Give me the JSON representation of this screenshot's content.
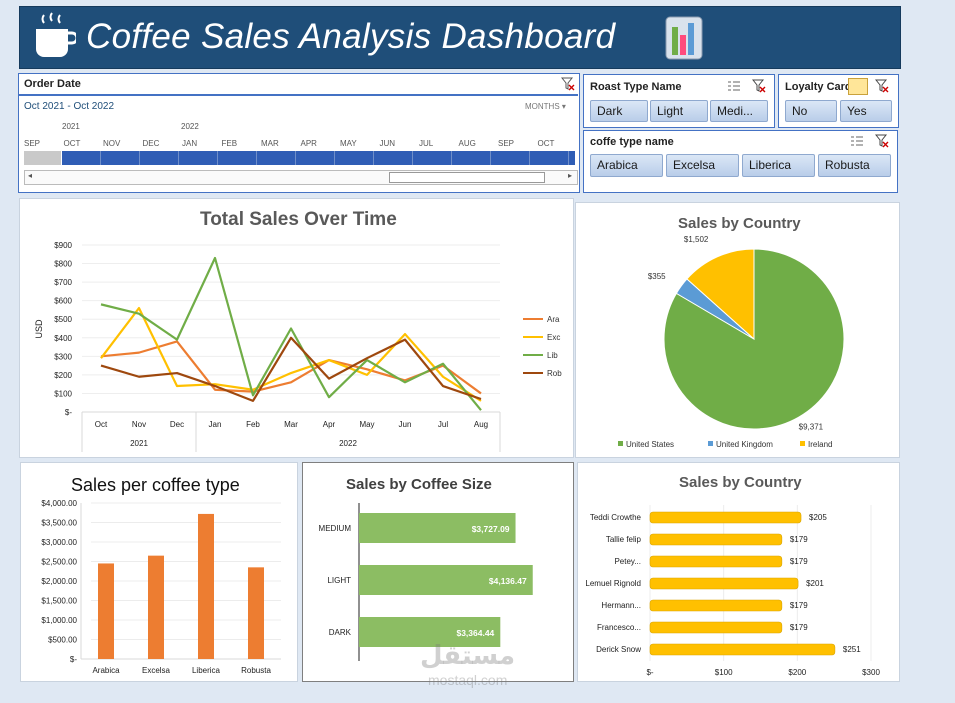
{
  "header": {
    "title": "Coffee Sales Analysis Dashboard"
  },
  "order_date": {
    "title": "Order Date",
    "range": "Oct 2021 - Oct 2022",
    "level": "MONTHS",
    "years": [
      "2021",
      "2022"
    ],
    "months": [
      "SEP",
      "OCT",
      "NOV",
      "DEC",
      "JAN",
      "FEB",
      "MAR",
      "APR",
      "MAY",
      "JUN",
      "JUL",
      "AUG",
      "SEP",
      "OCT"
    ]
  },
  "roast": {
    "title": "Roast Type Name",
    "items": [
      "Dark",
      "Light",
      "Medi..."
    ]
  },
  "loyalty": {
    "title": "Loyalty Card",
    "items": [
      "No",
      "Yes"
    ]
  },
  "coffee_type": {
    "title": "coffe type name",
    "items": [
      "Arabica",
      "Excelsa",
      "Liberica",
      "Robusta"
    ]
  },
  "colors": {
    "header": "#1f4e79",
    "ara": "#ed7d31",
    "exc": "#ffc000",
    "lib": "#70ad47",
    "rob": "#9e480e",
    "bar": "#ed7d31",
    "size": "#8cbd63",
    "gold": "#ffc000",
    "uk": "#5b9bd5",
    "us": "#70ad47"
  },
  "chart_data": [
    {
      "type": "line",
      "title": "Total Sales Over Time",
      "ylabel": "USD",
      "categories": [
        "Oct",
        "Nov",
        "Dec",
        "Jan",
        "Feb",
        "Mar",
        "Apr",
        "May",
        "Jun",
        "Jul",
        "Aug"
      ],
      "groups": [
        "2021",
        "2022"
      ],
      "yticks": [
        "$900",
        "$800",
        "$700",
        "$600",
        "$500",
        "$400",
        "$300",
        "$200",
        "$100",
        "$-"
      ],
      "ylim": [
        0,
        900
      ],
      "series": [
        {
          "name": "Ara",
          "values": [
            300,
            320,
            380,
            120,
            110,
            160,
            280,
            230,
            170,
            250,
            100
          ]
        },
        {
          "name": "Exc",
          "values": [
            290,
            560,
            140,
            150,
            120,
            210,
            280,
            200,
            420,
            190,
            60
          ]
        },
        {
          "name": "Lib",
          "values": [
            580,
            530,
            390,
            830,
            90,
            450,
            80,
            280,
            160,
            260,
            10
          ]
        },
        {
          "name": "Rob",
          "values": [
            250,
            190,
            210,
            140,
            60,
            400,
            180,
            290,
            390,
            140,
            70
          ]
        }
      ]
    },
    {
      "type": "pie",
      "title": "Sales by Country",
      "labels": [
        "United States",
        "United Kingdom",
        "Ireland"
      ],
      "values": [
        9371,
        355,
        1502
      ],
      "value_labels": [
        "$9,371",
        "$355",
        "$1,502"
      ]
    },
    {
      "type": "bar",
      "title": "Sales per coffee type",
      "categories": [
        "Arabica",
        "Excelsa",
        "Liberica",
        "Robusta"
      ],
      "values": [
        2450,
        2650,
        3720,
        2350
      ],
      "yticks": [
        "$4,000.00",
        "$3,500.00",
        "$3,000.00",
        "$2,500.00",
        "$2,000.00",
        "$1,500.00",
        "$1,000.00",
        "$500.00",
        "$-"
      ],
      "ylim": [
        0,
        4000
      ]
    },
    {
      "type": "bar",
      "orientation": "horizontal",
      "title": "Sales by Coffee Size",
      "categories": [
        "MEDIUM",
        "LIGHT",
        "DARK"
      ],
      "values": [
        3727.09,
        4136.47,
        3364.44
      ],
      "value_labels": [
        "$3,727.09",
        "$4,136.47",
        "$3,364.44"
      ],
      "xlim": [
        0,
        5000
      ]
    },
    {
      "type": "bar",
      "orientation": "horizontal",
      "title": "Sales by Country",
      "categories": [
        "Teddi Crowthe",
        "Tallie felip",
        "Petey...",
        "Lemuel Rignold",
        "Hermann...",
        "Francesco...",
        "Derick Snow"
      ],
      "values": [
        205,
        179,
        179,
        201,
        179,
        179,
        251
      ],
      "value_labels": [
        "$205",
        "$179",
        "$179",
        "$201",
        "$179",
        "$179",
        "$251"
      ],
      "xticks": [
        "$-",
        "$100",
        "$200",
        "$300"
      ],
      "xlim": [
        0,
        300
      ]
    }
  ]
}
